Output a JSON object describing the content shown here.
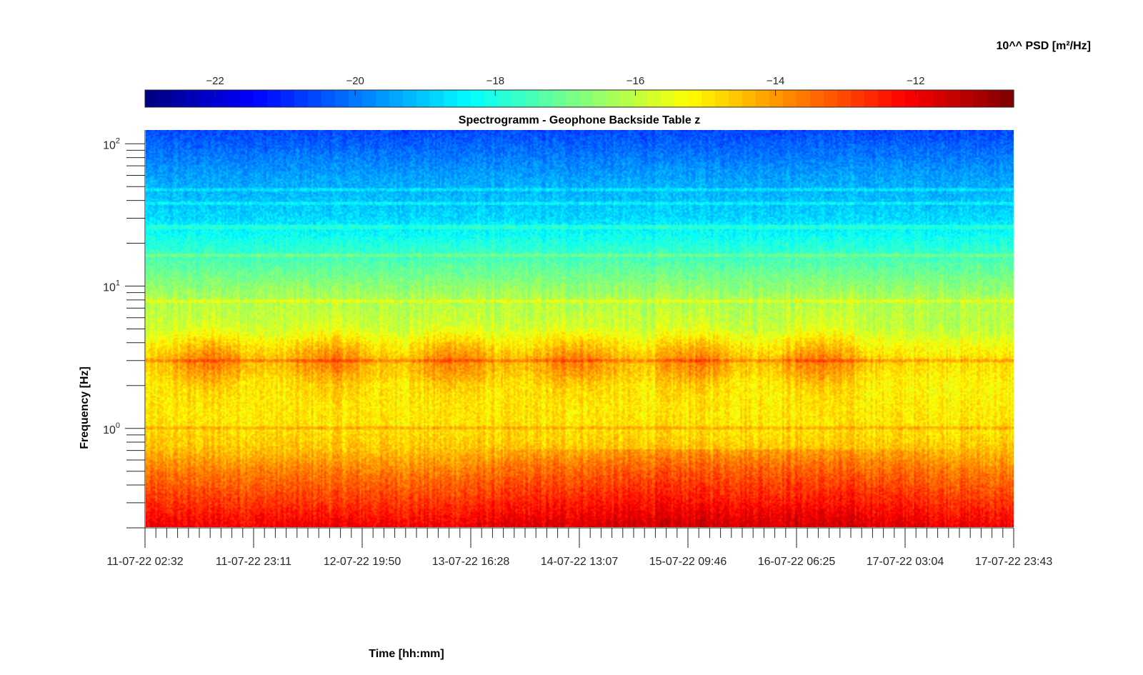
{
  "chart_data": {
    "type": "heatmap",
    "title": "Spectrogramm - Geophone Backside Table z",
    "xlabel": "Time [hh:mm]",
    "ylabel": "Frequency [Hz]",
    "colorbar": {
      "label": "10^^ PSD [m²/Hz]",
      "ticks": [
        -22,
        -20,
        -18,
        -16,
        -14,
        -12
      ],
      "range": [
        -23,
        -10.6
      ],
      "colormap": "jet",
      "placement": "top"
    },
    "x_ticks": [
      "11-07-22 02:32",
      "11-07-22 23:11",
      "12-07-22 19:50",
      "13-07-22 16:28",
      "14-07-22 13:07",
      "15-07-22 09:46",
      "16-07-22 06:25",
      "17-07-22 03:04",
      "17-07-22 23:43"
    ],
    "y_scale": "log",
    "y_range_hz": [
      0.2,
      125
    ],
    "y_ticks": [
      {
        "value": 1,
        "base": "10",
        "exp": "0"
      },
      {
        "value": 10,
        "base": "10",
        "exp": "1"
      },
      {
        "value": 100,
        "base": "10",
        "exp": "2"
      }
    ],
    "grid": false,
    "psd_profile": [
      {
        "hz": 0.2,
        "log_psd": -12.0
      },
      {
        "hz": 0.3,
        "log_psd": -12.8
      },
      {
        "hz": 0.5,
        "log_psd": -13.7
      },
      {
        "hz": 0.7,
        "log_psd": -14.5
      },
      {
        "hz": 1.0,
        "log_psd": -14.9
      },
      {
        "hz": 2.0,
        "log_psd": -15.2
      },
      {
        "hz": 3.0,
        "log_psd": -14.8
      },
      {
        "hz": 5.0,
        "log_psd": -16.0
      },
      {
        "hz": 8.0,
        "log_psd": -16.2
      },
      {
        "hz": 15.0,
        "log_psd": -17.4
      },
      {
        "hz": 30.0,
        "log_psd": -18.8
      },
      {
        "hz": 60.0,
        "log_psd": -19.5
      },
      {
        "hz": 125.0,
        "log_psd": -20.6
      }
    ],
    "daily_activity_centers": [
      "11-07-22 14:00",
      "12-07-22 14:00",
      "13-07-22 14:00",
      "14-07-22 14:00",
      "15-07-22 14:00",
      "16-07-22 14:00"
    ],
    "spectral_lines_hz": [
      1.0,
      3.0,
      7.8,
      16.5,
      26.0,
      38.0,
      48.0
    ]
  }
}
